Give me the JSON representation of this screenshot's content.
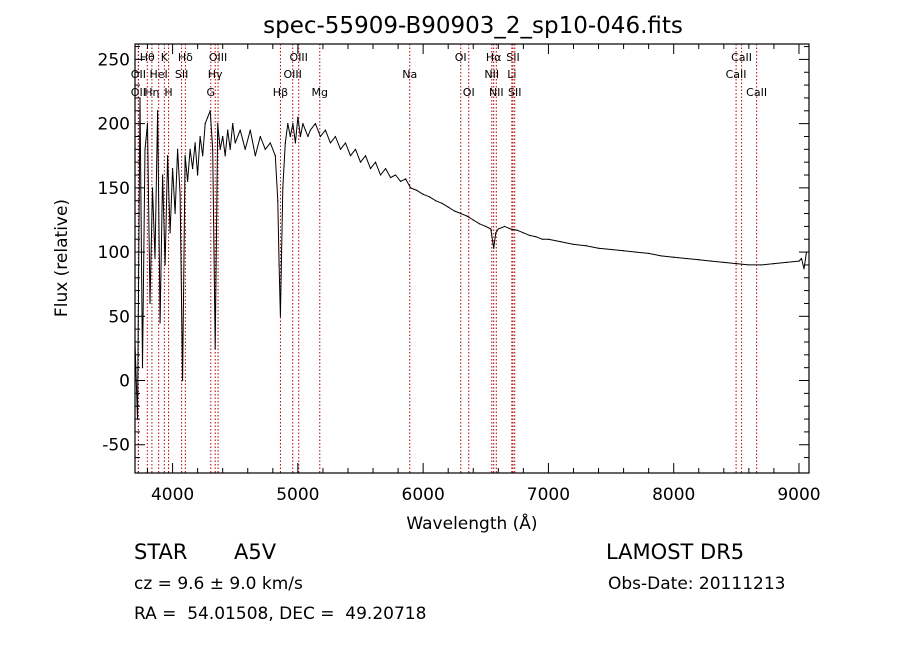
{
  "chart_data": {
    "type": "line",
    "title": "spec-55909-B90903_2_sp10-046.fits",
    "xlabel": "Wavelength (Å)",
    "ylabel": "Flux (relative)",
    "xlim": [
      3700,
      9080
    ],
    "ylim": [
      -72,
      262
    ],
    "xticks": [
      4000,
      5000,
      6000,
      7000,
      8000,
      9000
    ],
    "yticks": [
      -50,
      0,
      50,
      100,
      150,
      200,
      250
    ],
    "grid": false,
    "line_color": "#000000",
    "marker_color": "#b00000",
    "series": [
      {
        "x": [
          3700,
          3720,
          3740,
          3760,
          3780,
          3800,
          3820,
          3840,
          3860,
          3880,
          3900,
          3920,
          3940,
          3960,
          3980,
          4000,
          4020,
          4040,
          4060,
          4080,
          4100,
          4120,
          4140,
          4160,
          4180,
          4200,
          4220,
          4240,
          4260,
          4280,
          4300,
          4320,
          4340,
          4360,
          4380,
          4400,
          4420,
          4440,
          4460,
          4480,
          4500,
          4540,
          4580,
          4620,
          4660,
          4700,
          4740,
          4780,
          4820,
          4840,
          4850,
          4861,
          4870,
          4880,
          4900,
          4920,
          4940,
          4960,
          4980,
          5000,
          5020,
          5040,
          5060,
          5080,
          5100,
          5140,
          5180,
          5220,
          5260,
          5300,
          5340,
          5380,
          5420,
          5460,
          5500,
          5540,
          5580,
          5620,
          5660,
          5700,
          5740,
          5780,
          5820,
          5860,
          5900,
          5950,
          6000,
          6050,
          6100,
          6150,
          6200,
          6250,
          6300,
          6350,
          6400,
          6450,
          6500,
          6540,
          6563,
          6580,
          6600,
          6650,
          6700,
          6750,
          6800,
          6850,
          6900,
          6950,
          7000,
          7100,
          7200,
          7300,
          7400,
          7500,
          7600,
          7700,
          7800,
          7900,
          8000,
          8100,
          8200,
          8300,
          8400,
          8500,
          8600,
          8700,
          8800,
          8900,
          9000,
          9020,
          9040,
          9060
        ],
        "values": [
          30,
          -30,
          220,
          10,
          180,
          200,
          60,
          150,
          95,
          210,
          45,
          160,
          90,
          175,
          115,
          165,
          130,
          180,
          145,
          0,
          175,
          155,
          180,
          165,
          185,
          160,
          190,
          175,
          200,
          205,
          210,
          180,
          25,
          200,
          180,
          190,
          175,
          195,
          180,
          200,
          185,
          195,
          180,
          195,
          175,
          190,
          180,
          185,
          175,
          140,
          90,
          50,
          100,
          150,
          185,
          200,
          190,
          200,
          185,
          205,
          190,
          200,
          195,
          190,
          195,
          200,
          190,
          195,
          185,
          190,
          180,
          185,
          175,
          180,
          170,
          175,
          165,
          170,
          160,
          165,
          158,
          160,
          155,
          157,
          150,
          148,
          145,
          143,
          140,
          138,
          135,
          132,
          130,
          128,
          125,
          122,
          120,
          118,
          103,
          115,
          118,
          120,
          118,
          117,
          115,
          113,
          112,
          110,
          110,
          108,
          106,
          105,
          103,
          102,
          101,
          100,
          99,
          97,
          96,
          95,
          94,
          93,
          92,
          91,
          90,
          90,
          91,
          92,
          93,
          95,
          87,
          100
        ]
      }
    ],
    "lines": [
      {
        "label": "OII",
        "x": 3727,
        "row": 3
      },
      {
        "label": "Hθ",
        "x": 3798,
        "row": 1
      },
      {
        "label": "OII",
        "x": 3727,
        "row": 2
      },
      {
        "label": "Hη",
        "x": 3835,
        "row": 3
      },
      {
        "label": "HeI",
        "x": 3889,
        "row": 2
      },
      {
        "label": "K",
        "x": 3934,
        "row": 1
      },
      {
        "label": "H",
        "x": 3968,
        "row": 3
      },
      {
        "label": "SII",
        "x": 4072,
        "row": 2
      },
      {
        "label": "Hδ",
        "x": 4102,
        "row": 1
      },
      {
        "label": "G",
        "x": 4305,
        "row": 3
      },
      {
        "label": "Hγ",
        "x": 4340,
        "row": 2
      },
      {
        "label": "OIII",
        "x": 4363,
        "row": 1
      },
      {
        "label": "Hβ",
        "x": 4861,
        "row": 3
      },
      {
        "label": "OIII",
        "x": 5007,
        "row": 1
      },
      {
        "label": "OIII",
        "x": 4959,
        "row": 2
      },
      {
        "label": "Mg",
        "x": 5175,
        "row": 3
      },
      {
        "label": "Na",
        "x": 5893,
        "row": 2
      },
      {
        "label": "OI",
        "x": 6300,
        "row": 1
      },
      {
        "label": "OI",
        "x": 6364,
        "row": 3
      },
      {
        "label": "Hα",
        "x": 6563,
        "row": 1
      },
      {
        "label": "NII",
        "x": 6548,
        "row": 2
      },
      {
        "label": "NII",
        "x": 6584,
        "row": 3
      },
      {
        "label": "SII",
        "x": 6717,
        "row": 1
      },
      {
        "label": "Li",
        "x": 6708,
        "row": 2
      },
      {
        "label": "SII",
        "x": 6731,
        "row": 3
      },
      {
        "label": "CaII",
        "x": 8542,
        "row": 1
      },
      {
        "label": "CaII",
        "x": 8498,
        "row": 2
      },
      {
        "label": "CaII",
        "x": 8662,
        "row": 3
      }
    ]
  },
  "info": {
    "object_type": "STAR",
    "subclass": "A5V",
    "survey": "LAMOST DR5",
    "redshift": "cz = 9.6 ± 9.0 km/s",
    "obs_date": "Obs-Date: 20111213",
    "coords": "RA =  54.01508, DEC =  49.20718"
  }
}
